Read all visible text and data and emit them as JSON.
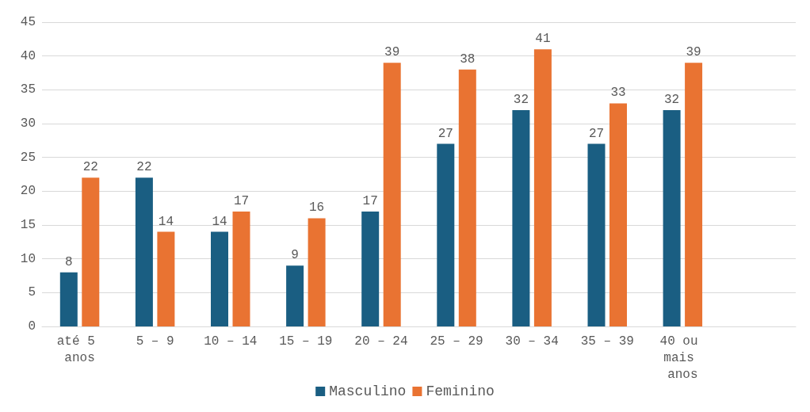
{
  "chart_data": {
    "type": "bar",
    "categories": [
      "até 5 anos",
      "5 – 9",
      "10 – 14",
      "15 – 19",
      "20 – 24",
      "25 – 29",
      "30 – 34",
      "35 – 39",
      "40 ou mais anos",
      null
    ],
    "series": [
      {
        "name": "Masculino",
        "color": "#1a5e82",
        "values": [
          8,
          22,
          14,
          9,
          17,
          27,
          32,
          27,
          32,
          null
        ]
      },
      {
        "name": "Feminino",
        "color": "#e97332",
        "values": [
          22,
          14,
          17,
          16,
          39,
          38,
          41,
          33,
          39,
          null
        ]
      }
    ],
    "ylim": [
      0,
      45
    ],
    "yticks": [
      0,
      5,
      10,
      15,
      20,
      25,
      30,
      35,
      40,
      45
    ],
    "grid": "y",
    "legend": "bottom",
    "data_labels": true
  }
}
